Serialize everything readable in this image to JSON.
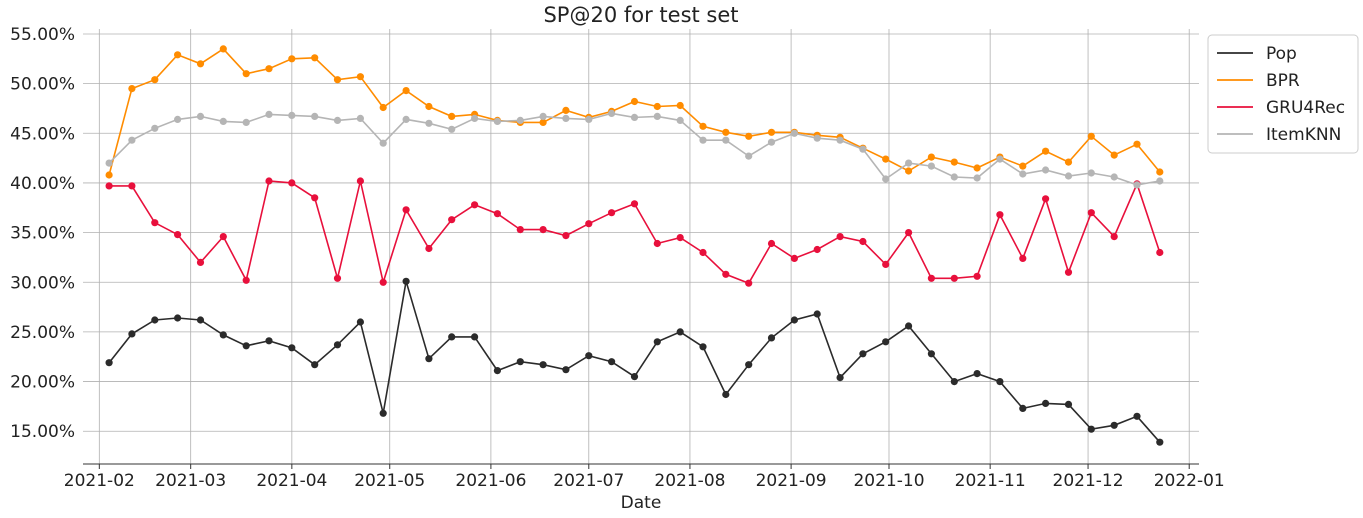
{
  "chart_data": {
    "type": "line",
    "title": "SP@20 for test set",
    "xlabel": "Date",
    "ylabel": "",
    "x_scale": "date",
    "x_ticks": [
      "2021-02",
      "2021-03",
      "2021-04",
      "2021-05",
      "2021-06",
      "2021-07",
      "2021-08",
      "2021-09",
      "2021-10",
      "2021-11",
      "2021-12",
      "2022-01"
    ],
    "xlim": [
      "2021-01-27",
      "2022-01-04"
    ],
    "y_ticks": [
      "15.00%",
      "20.00%",
      "25.00%",
      "30.00%",
      "35.00%",
      "40.00%",
      "45.00%",
      "50.00%",
      "55.00%"
    ],
    "ylim": [
      0.117,
      0.555
    ],
    "y_format": "percent",
    "grid": true,
    "legend_position": "upper-right-outside",
    "x": [
      "2021-02-04",
      "2021-02-11",
      "2021-02-18",
      "2021-02-25",
      "2021-03-04",
      "2021-03-11",
      "2021-03-18",
      "2021-03-25",
      "2021-04-01",
      "2021-04-08",
      "2021-04-15",
      "2021-04-22",
      "2021-04-29",
      "2021-05-06",
      "2021-05-13",
      "2021-05-20",
      "2021-05-27",
      "2021-06-03",
      "2021-06-10",
      "2021-06-17",
      "2021-06-24",
      "2021-07-01",
      "2021-07-08",
      "2021-07-15",
      "2021-07-22",
      "2021-07-29",
      "2021-08-05",
      "2021-08-12",
      "2021-08-19",
      "2021-08-26",
      "2021-09-02",
      "2021-09-09",
      "2021-09-16",
      "2021-09-23",
      "2021-09-30",
      "2021-10-07",
      "2021-10-14",
      "2021-10-21",
      "2021-10-28",
      "2021-11-04",
      "2021-11-11",
      "2021-11-18",
      "2021-11-25",
      "2021-12-02",
      "2021-12-09",
      "2021-12-16",
      "2021-12-23"
    ],
    "series": [
      {
        "name": "Pop",
        "color": "#2b2b2b",
        "values": [
          0.219,
          0.248,
          0.262,
          0.264,
          0.262,
          0.247,
          0.236,
          0.241,
          0.234,
          0.217,
          0.237,
          0.26,
          0.168,
          0.301,
          0.223,
          0.245,
          0.245,
          0.211,
          0.22,
          0.217,
          0.212,
          0.226,
          0.22,
          0.205,
          0.24,
          0.25,
          0.235,
          0.187,
          0.217,
          0.244,
          0.262,
          0.268,
          0.204,
          0.228,
          0.24,
          0.256,
          0.228,
          0.2,
          0.208,
          0.2,
          0.173,
          0.178,
          0.177,
          0.152,
          0.156,
          0.165,
          0.139
        ]
      },
      {
        "name": "BPR",
        "color": "#ff8c00",
        "values": [
          0.408,
          0.495,
          0.504,
          0.529,
          0.52,
          0.535,
          0.51,
          0.515,
          0.525,
          0.526,
          0.504,
          0.507,
          0.476,
          0.493,
          0.477,
          0.467,
          0.469,
          0.463,
          0.461,
          0.461,
          0.473,
          0.466,
          0.472,
          0.482,
          0.477,
          0.478,
          0.457,
          0.451,
          0.447,
          0.451,
          0.451,
          0.448,
          0.446,
          0.435,
          0.424,
          0.412,
          0.426,
          0.421,
          0.415,
          0.426,
          0.417,
          0.432,
          0.421,
          0.447,
          0.428,
          0.439,
          0.411
        ]
      },
      {
        "name": "GRU4Rec",
        "color": "#e8103c",
        "values": [
          0.397,
          0.397,
          0.36,
          0.348,
          0.32,
          0.346,
          0.302,
          0.402,
          0.4,
          0.385,
          0.304,
          0.402,
          0.3,
          0.373,
          0.334,
          0.363,
          0.378,
          0.369,
          0.353,
          0.353,
          0.347,
          0.359,
          0.37,
          0.379,
          0.339,
          0.345,
          0.33,
          0.308,
          0.299,
          0.339,
          0.324,
          0.333,
          0.346,
          0.341,
          0.318,
          0.35,
          0.304,
          0.304,
          0.306,
          0.368,
          0.324,
          0.384,
          0.31,
          0.37,
          0.346,
          0.399,
          0.33
        ]
      },
      {
        "name": "ItemKNN",
        "color": "#b5b5b5",
        "values": [
          0.42,
          0.443,
          0.455,
          0.464,
          0.467,
          0.462,
          0.461,
          0.469,
          0.468,
          0.467,
          0.463,
          0.465,
          0.44,
          0.464,
          0.46,
          0.454,
          0.465,
          0.462,
          0.463,
          0.467,
          0.465,
          0.464,
          0.47,
          0.466,
          0.467,
          0.463,
          0.443,
          0.443,
          0.427,
          0.441,
          0.45,
          0.445,
          0.443,
          0.434,
          0.404,
          0.42,
          0.417,
          0.406,
          0.405,
          0.424,
          0.409,
          0.413,
          0.407,
          0.41,
          0.406,
          0.398,
          0.402
        ]
      }
    ]
  }
}
